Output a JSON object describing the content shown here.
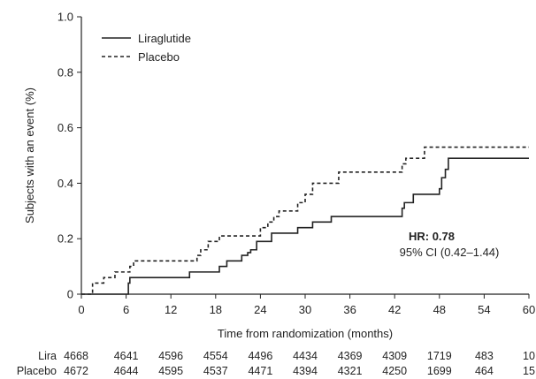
{
  "chart_data": {
    "type": "line",
    "xlabel": "Time from randomization (months)",
    "ylabel": "Subjects with an event (%)",
    "xlim": [
      0,
      60
    ],
    "ylim": [
      0,
      1.0
    ],
    "x_ticks": [
      0,
      6,
      12,
      18,
      24,
      30,
      36,
      42,
      48,
      54,
      60
    ],
    "y_ticks": [
      "0",
      "0.2",
      "0.4",
      "0.6",
      "0.8",
      "1.0"
    ],
    "grid": false,
    "legend_position": "top-left",
    "series": [
      {
        "name": "Liraglutide",
        "style": "solid",
        "color": "#222222",
        "steps": [
          [
            0,
            0
          ],
          [
            6.3,
            0.04
          ],
          [
            6.5,
            0.06
          ],
          [
            14.5,
            0.08
          ],
          [
            18.5,
            0.1
          ],
          [
            19.5,
            0.12
          ],
          [
            21.5,
            0.14
          ],
          [
            22.3,
            0.15
          ],
          [
            22.7,
            0.16
          ],
          [
            23.5,
            0.19
          ],
          [
            25.5,
            0.22
          ],
          [
            29,
            0.24
          ],
          [
            31,
            0.26
          ],
          [
            33.5,
            0.28
          ],
          [
            43,
            0.31
          ],
          [
            43.3,
            0.33
          ],
          [
            44.5,
            0.36
          ],
          [
            48,
            0.38
          ],
          [
            48.3,
            0.42
          ],
          [
            48.8,
            0.45
          ],
          [
            49.2,
            0.49
          ],
          [
            60,
            0.49
          ]
        ]
      },
      {
        "name": "Placebo",
        "style": "dashed",
        "color": "#222222",
        "steps": [
          [
            0,
            0
          ],
          [
            1.5,
            0.04
          ],
          [
            3,
            0.06
          ],
          [
            4.5,
            0.08
          ],
          [
            6.5,
            0.1
          ],
          [
            7,
            0.12
          ],
          [
            15.5,
            0.14
          ],
          [
            16,
            0.16
          ],
          [
            17,
            0.19
          ],
          [
            18.5,
            0.21
          ],
          [
            24,
            0.24
          ],
          [
            25,
            0.26
          ],
          [
            25.8,
            0.28
          ],
          [
            26.5,
            0.3
          ],
          [
            29,
            0.33
          ],
          [
            30,
            0.36
          ],
          [
            31,
            0.4
          ],
          [
            34.5,
            0.44
          ],
          [
            43,
            0.47
          ],
          [
            43.5,
            0.49
          ],
          [
            46,
            0.53
          ],
          [
            60,
            0.53
          ]
        ]
      }
    ],
    "annotation": {
      "hr_label": "HR: ",
      "hr_value": "0.78",
      "ci": "95% CI (0.42–1.44)"
    },
    "at_risk": [
      {
        "label": "Lira",
        "values": [
          "4668",
          "4641",
          "4596",
          "4554",
          "4496",
          "4434",
          "4369",
          "4309",
          "1719",
          "483",
          "10"
        ]
      },
      {
        "label": "Placebo",
        "values": [
          "4672",
          "4644",
          "4595",
          "4537",
          "4471",
          "4394",
          "4321",
          "4250",
          "1699",
          "464",
          "15"
        ]
      }
    ]
  }
}
